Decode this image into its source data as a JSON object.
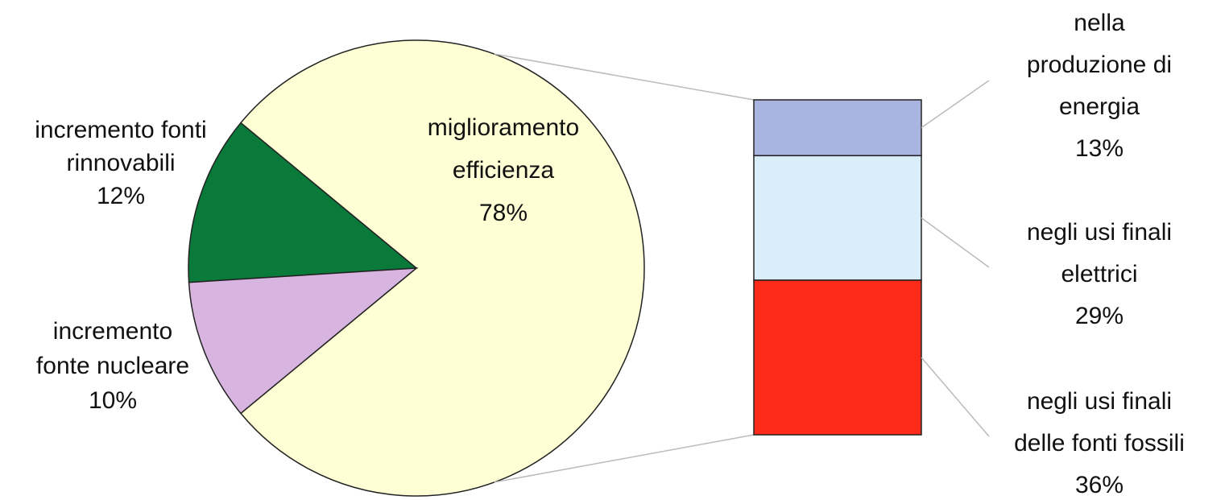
{
  "chart_data": {
    "type": "pie",
    "categories": [
      [
        "miglioramento",
        "efficienza"
      ],
      [
        "incremento fonti",
        "rinnovabili"
      ],
      [
        "incremento",
        "fonte nucleare"
      ]
    ],
    "values": [
      78,
      12,
      10
    ],
    "value_labels": [
      "78%",
      "12%",
      "10%"
    ],
    "colors": [
      "#ffffd6",
      "#0a7a3a",
      "#d8b4e0"
    ],
    "breakdown": {
      "type": "bar",
      "categories": [
        [
          "nella",
          "produzione di",
          "energia"
        ],
        [
          "negli usi finali",
          "elettrici"
        ],
        [
          "negli usi finali",
          "delle fonti fossili"
        ]
      ],
      "values": [
        13,
        29,
        36
      ],
      "value_labels": [
        "13%",
        "29%",
        "36%"
      ],
      "colors": [
        "#aab4e0",
        "#daeefa",
        "#ff2a1a"
      ]
    }
  }
}
